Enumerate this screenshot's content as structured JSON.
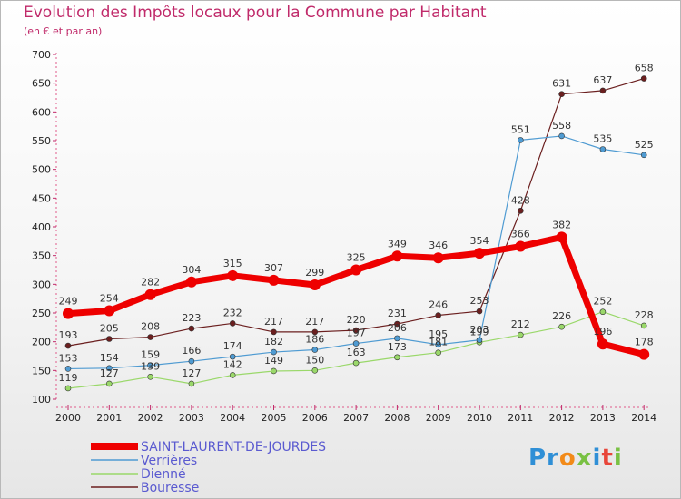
{
  "chart_data": {
    "type": "line",
    "title": "Evolution des Impôts locaux pour la Commune par Habitant",
    "subtitle": "(en € et par an)",
    "ylim": [
      100,
      700
    ],
    "y_ticks": [
      100,
      150,
      200,
      250,
      300,
      350,
      400,
      450,
      500,
      550,
      600,
      650,
      700
    ],
    "categories": [
      "2000",
      "2001",
      "2002",
      "2003",
      "2004",
      "2005",
      "2006",
      "2007",
      "2008",
      "2009",
      "2010",
      "2011",
      "2012",
      "2013",
      "2014"
    ],
    "series": [
      {
        "name": "Bouresse",
        "color": "#6b1f1f",
        "values": [
          193,
          205,
          208,
          223,
          232,
          217,
          217,
          220,
          231,
          246,
          253,
          428,
          631,
          637,
          658
        ]
      },
      {
        "name": "Dienné",
        "color": "#9ad86a",
        "values": [
          119,
          127,
          139,
          127,
          142,
          149,
          150,
          163,
          173,
          181,
          199,
          212,
          226,
          252,
          228
        ]
      },
      {
        "name": "Verrières",
        "color": "#4f9bd2",
        "values": [
          153,
          154,
          159,
          166,
          174,
          182,
          186,
          197,
          206,
          195,
          203,
          551,
          558,
          535,
          525
        ]
      },
      {
        "name": "SAINT-LAURENT-DE-JOURDES",
        "color": "#ee0000",
        "values": [
          249,
          254,
          282,
          304,
          315,
          307,
          299,
          325,
          349,
          346,
          354,
          366,
          382,
          196,
          178
        ]
      }
    ],
    "legend": [
      "SAINT-LAURENT-DE-JOURDES",
      "Verrières",
      "Dienné",
      "Bouresse"
    ],
    "legend_position": "bottom-left",
    "grid": false
  },
  "logo": {
    "p": "Pr",
    "o": "o",
    "x": "x",
    "i": "i",
    "t": "t",
    "i2": "i"
  }
}
